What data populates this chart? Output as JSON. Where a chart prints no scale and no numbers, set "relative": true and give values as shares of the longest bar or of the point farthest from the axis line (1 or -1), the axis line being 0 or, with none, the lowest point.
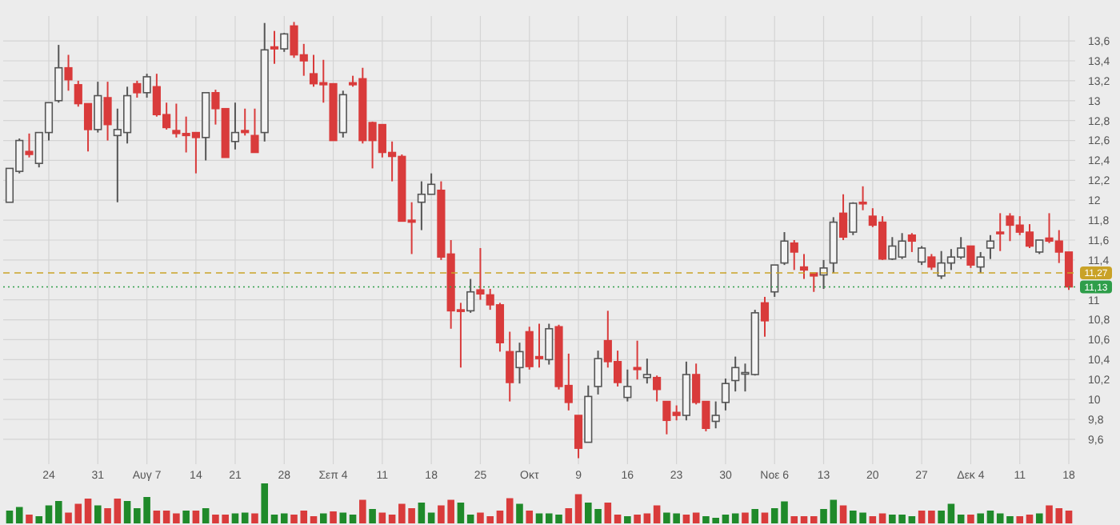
{
  "chart_data": [
    {
      "type": "candlestick",
      "categories": [
        null,
        null,
        null,
        null,
        "24",
        null,
        null,
        null,
        null,
        "31",
        null,
        null,
        null,
        null,
        "Αυγ 7",
        null,
        null,
        null,
        null,
        "14",
        null,
        null,
        null,
        "21",
        null,
        null,
        null,
        null,
        "28",
        null,
        null,
        null,
        null,
        "Σεπ 4",
        null,
        null,
        null,
        null,
        "11",
        null,
        null,
        null,
        null,
        "18",
        null,
        null,
        null,
        null,
        "25",
        null,
        null,
        null,
        null,
        "Οκτ",
        null,
        null,
        null,
        null,
        "9",
        null,
        null,
        null,
        null,
        "16",
        null,
        null,
        null,
        null,
        "23",
        null,
        null,
        null,
        null,
        "30",
        null,
        null,
        null,
        null,
        "Νοε 6",
        null,
        null,
        null,
        null,
        "13",
        null,
        null,
        null,
        null,
        "20",
        null,
        null,
        null,
        null,
        "27",
        null,
        null,
        null,
        null,
        "Δεκ 4",
        null,
        null,
        null,
        null,
        "11",
        null,
        null,
        null,
        null,
        "18"
      ],
      "ohlc": [
        [
          11.98,
          12.32,
          11.98,
          12.32
        ],
        [
          12.29,
          12.62,
          12.27,
          12.6
        ],
        [
          12.49,
          12.67,
          12.43,
          12.46
        ],
        [
          12.37,
          12.68,
          12.33,
          12.68
        ],
        [
          12.68,
          12.98,
          12.6,
          12.98
        ],
        [
          13.0,
          13.56,
          12.98,
          13.33
        ],
        [
          13.33,
          13.46,
          13.1,
          13.21
        ],
        [
          13.16,
          13.2,
          12.94,
          12.97
        ],
        [
          12.97,
          12.97,
          12.49,
          12.71
        ],
        [
          12.71,
          13.19,
          12.68,
          13.05
        ],
        [
          13.03,
          13.19,
          12.6,
          12.76
        ],
        [
          12.65,
          12.92,
          11.98,
          12.71
        ],
        [
          12.68,
          13.14,
          12.57,
          13.05
        ],
        [
          13.17,
          13.2,
          13.03,
          13.08
        ],
        [
          13.08,
          13.27,
          13.03,
          13.24
        ],
        [
          13.14,
          13.27,
          12.84,
          12.86
        ],
        [
          12.86,
          12.98,
          12.71,
          12.73
        ],
        [
          12.7,
          12.97,
          12.63,
          12.67
        ],
        [
          12.67,
          12.84,
          12.48,
          12.65
        ],
        [
          12.68,
          12.68,
          12.27,
          12.63
        ],
        [
          12.63,
          13.08,
          12.4,
          13.08
        ],
        [
          13.08,
          13.11,
          12.76,
          12.92
        ],
        [
          12.92,
          12.92,
          12.43,
          12.43
        ],
        [
          12.59,
          12.98,
          12.51,
          12.68
        ],
        [
          12.7,
          12.92,
          12.65,
          12.68
        ],
        [
          12.65,
          12.92,
          12.48,
          12.48
        ],
        [
          12.68,
          13.78,
          12.59,
          13.51
        ],
        [
          13.54,
          13.7,
          13.37,
          13.52
        ],
        [
          13.52,
          13.68,
          13.49,
          13.67
        ],
        [
          13.75,
          13.79,
          13.43,
          13.46
        ],
        [
          13.46,
          13.57,
          13.25,
          13.4
        ],
        [
          13.27,
          13.46,
          13.14,
          13.17
        ],
        [
          13.18,
          13.41,
          12.98,
          13.16
        ],
        [
          13.17,
          13.17,
          12.6,
          12.6
        ],
        [
          12.68,
          13.1,
          12.63,
          13.06
        ],
        [
          13.18,
          13.25,
          13.14,
          13.16
        ],
        [
          13.22,
          13.33,
          12.57,
          12.6
        ],
        [
          12.78,
          12.79,
          12.32,
          12.6
        ],
        [
          12.76,
          12.76,
          12.43,
          12.48
        ],
        [
          12.48,
          12.59,
          12.19,
          12.44
        ],
        [
          12.44,
          12.46,
          11.79,
          11.79
        ],
        [
          11.8,
          11.98,
          11.46,
          11.78
        ],
        [
          11.98,
          12.19,
          11.7,
          12.06
        ],
        [
          12.06,
          12.27,
          12.06,
          12.16
        ],
        [
          12.1,
          12.19,
          11.4,
          11.43
        ],
        [
          11.46,
          11.6,
          10.71,
          10.89
        ],
        [
          10.9,
          10.97,
          10.32,
          10.89
        ],
        [
          10.89,
          11.21,
          10.87,
          11.08
        ],
        [
          11.1,
          11.52,
          11.0,
          11.06
        ],
        [
          11.05,
          11.11,
          10.9,
          10.95
        ],
        [
          10.95,
          10.97,
          10.48,
          10.57
        ],
        [
          10.48,
          10.68,
          9.98,
          10.17
        ],
        [
          10.32,
          10.57,
          10.16,
          10.48
        ],
        [
          10.68,
          10.73,
          10.3,
          10.33
        ],
        [
          10.43,
          10.76,
          10.32,
          10.41
        ],
        [
          10.4,
          10.76,
          10.35,
          10.71
        ],
        [
          10.73,
          10.75,
          10.1,
          10.13
        ],
        [
          10.14,
          10.46,
          9.89,
          9.97
        ],
        [
          9.84,
          9.84,
          9.41,
          9.51
        ],
        [
          9.57,
          10.14,
          9.57,
          10.03
        ],
        [
          10.13,
          10.49,
          10.05,
          10.41
        ],
        [
          10.59,
          10.89,
          10.32,
          10.38
        ],
        [
          10.38,
          10.49,
          10.13,
          10.17
        ],
        [
          10.02,
          10.3,
          9.98,
          10.13
        ],
        [
          10.32,
          10.59,
          10.2,
          10.3
        ],
        [
          10.22,
          10.41,
          10.16,
          10.25
        ],
        [
          10.22,
          10.24,
          9.98,
          10.1
        ],
        [
          9.98,
          9.98,
          9.65,
          9.79
        ],
        [
          9.87,
          9.94,
          9.79,
          9.84
        ],
        [
          9.84,
          10.38,
          9.79,
          10.25
        ],
        [
          10.25,
          10.36,
          9.95,
          9.97
        ],
        [
          9.98,
          9.98,
          9.68,
          9.71
        ],
        [
          9.78,
          9.98,
          9.71,
          9.84
        ],
        [
          9.97,
          10.21,
          9.89,
          10.16
        ],
        [
          10.19,
          10.43,
          10.08,
          10.32
        ],
        [
          10.27,
          10.36,
          10.08,
          10.27
        ],
        [
          10.25,
          10.9,
          10.24,
          10.87
        ],
        [
          10.97,
          11.03,
          10.63,
          10.79
        ],
        [
          11.08,
          11.35,
          11.03,
          11.35
        ],
        [
          11.37,
          11.68,
          11.35,
          11.59
        ],
        [
          11.57,
          11.6,
          11.3,
          11.48
        ],
        [
          11.33,
          11.46,
          11.21,
          11.3
        ],
        [
          11.27,
          11.27,
          11.08,
          11.24
        ],
        [
          11.25,
          11.4,
          11.11,
          11.32
        ],
        [
          11.37,
          11.83,
          11.27,
          11.78
        ],
        [
          11.87,
          12.06,
          11.6,
          11.63
        ],
        [
          11.68,
          11.98,
          11.65,
          11.97
        ],
        [
          11.98,
          12.14,
          11.9,
          11.97
        ],
        [
          11.84,
          11.92,
          11.73,
          11.75
        ],
        [
          11.78,
          11.84,
          11.4,
          11.41
        ],
        [
          11.41,
          11.63,
          11.4,
          11.54
        ],
        [
          11.43,
          11.67,
          11.41,
          11.59
        ],
        [
          11.65,
          11.67,
          11.48,
          11.59
        ],
        [
          11.38,
          11.54,
          11.35,
          11.52
        ],
        [
          11.43,
          11.46,
          11.3,
          11.33
        ],
        [
          11.24,
          11.49,
          11.21,
          11.37
        ],
        [
          11.37,
          11.51,
          11.3,
          11.43
        ],
        [
          11.43,
          11.63,
          11.41,
          11.52
        ],
        [
          11.54,
          11.54,
          11.32,
          11.35
        ],
        [
          11.33,
          11.48,
          11.27,
          11.43
        ],
        [
          11.52,
          11.65,
          11.41,
          11.59
        ],
        [
          11.68,
          11.87,
          11.49,
          11.67
        ],
        [
          11.84,
          11.87,
          11.59,
          11.75
        ],
        [
          11.75,
          11.84,
          11.65,
          11.68
        ],
        [
          11.68,
          11.76,
          11.52,
          11.54
        ],
        [
          11.48,
          11.6,
          11.46,
          11.6
        ],
        [
          11.62,
          11.87,
          11.57,
          11.59
        ],
        [
          11.59,
          11.7,
          11.37,
          11.48
        ],
        [
          11.48,
          11.48,
          11.1,
          11.13
        ]
      ],
      "ylim": [
        9.35,
        13.85
      ],
      "yticks": [
        {
          "value": 9.6,
          "label": "9,6"
        },
        {
          "value": 9.8,
          "label": "9,8"
        },
        10,
        {
          "value": 10.2,
          "label": "10,2"
        },
        {
          "value": 10.4,
          "label": "10,4"
        },
        {
          "value": 10.6,
          "label": "10,6"
        },
        {
          "value": 10.8,
          "label": "10,8"
        },
        11,
        {
          "value": 11.4,
          "label": "11,4"
        },
        {
          "value": 11.6,
          "label": "11,6"
        },
        {
          "value": 11.8,
          "label": "11,8"
        },
        12,
        {
          "value": 12.2,
          "label": "12,2"
        },
        {
          "value": 12.4,
          "label": "12,4"
        },
        {
          "value": 12.6,
          "label": "12,6"
        },
        {
          "value": 12.8,
          "label": "12,8"
        },
        13,
        {
          "value": 13.2,
          "label": "13,2"
        },
        {
          "value": 13.4,
          "label": "13,4"
        },
        {
          "value": 13.6,
          "label": "13,6"
        }
      ],
      "ref_lines": [
        {
          "axis": "y",
          "value": 11.27,
          "label": "11,27",
          "color": "#c9a227",
          "line_style": "dashed"
        },
        {
          "axis": "y",
          "value": 11.13,
          "label": "11,13",
          "color": "#2e9e4a",
          "line_style": "dotted"
        }
      ],
      "grid": true
    },
    {
      "type": "bar",
      "relative": true,
      "categories": [
        null,
        null,
        null,
        null,
        null,
        null,
        null,
        null,
        null,
        null,
        null,
        null,
        null,
        null,
        null,
        null,
        null,
        null,
        null,
        null,
        null,
        null,
        null,
        null,
        null,
        null,
        null,
        null,
        null,
        null,
        null,
        null,
        null,
        null,
        null,
        null,
        null,
        null,
        null,
        null,
        null,
        null,
        null,
        null,
        null,
        null,
        null,
        null,
        null,
        null,
        null,
        null,
        null,
        null,
        null,
        null,
        null,
        null,
        null,
        null,
        null,
        null,
        null,
        null,
        null,
        null,
        null,
        null,
        null,
        null,
        null,
        null,
        null,
        null,
        null,
        null,
        null,
        null,
        null,
        null,
        null,
        null,
        null,
        null,
        null,
        null,
        null,
        null,
        null,
        null,
        null,
        null,
        null,
        null,
        null,
        null,
        null,
        null,
        null,
        null,
        null,
        null,
        null,
        null,
        null,
        null,
        null,
        null,
        null
      ],
      "values": [
        0.32,
        0.41,
        0.22,
        0.18,
        0.45,
        0.56,
        0.27,
        0.49,
        0.62,
        0.45,
        0.38,
        0.62,
        0.56,
        0.38,
        0.66,
        0.32,
        0.32,
        0.25,
        0.32,
        0.32,
        0.38,
        0.22,
        0.22,
        0.25,
        0.27,
        0.25,
        1,
        0.22,
        0.25,
        0.22,
        0.32,
        0.18,
        0.25,
        0.3,
        0.27,
        0.22,
        0.59,
        0.36,
        0.27,
        0.22,
        0.49,
        0.38,
        0.52,
        0.27,
        0.45,
        0.59,
        0.52,
        0.22,
        0.27,
        0.18,
        0.32,
        0.63,
        0.49,
        0.32,
        0.25,
        0.25,
        0.22,
        0.38,
        0.73,
        0.52,
        0.36,
        0.52,
        0.22,
        0.18,
        0.22,
        0.25,
        0.45,
        0.27,
        0.25,
        0.22,
        0.27,
        0.18,
        0.14,
        0.22,
        0.25,
        0.27,
        0.36,
        0.27,
        0.38,
        0.55,
        0.18,
        0.18,
        0.18,
        0.36,
        0.59,
        0.45,
        0.32,
        0.27,
        0.18,
        0.25,
        0.22,
        0.22,
        0.18,
        0.32,
        0.32,
        0.32,
        0.49,
        0.22,
        0.22,
        0.25,
        0.32,
        0.25,
        0.18,
        0.18,
        0.22,
        0.25,
        0.45,
        0.38,
        0.32
      ],
      "colors": [
        "#1f8a2a",
        "#1f8a2a",
        "#d93b3b",
        "#1f8a2a",
        "#1f8a2a",
        "#1f8a2a",
        "#d93b3b",
        "#d93b3b",
        "#d93b3b",
        "#1f8a2a",
        "#d93b3b",
        "#d93b3b",
        "#1f8a2a",
        "#1f8a2a",
        "#1f8a2a",
        "#d93b3b",
        "#d93b3b",
        "#d93b3b",
        "#1f8a2a",
        "#d93b3b",
        "#1f8a2a",
        "#d93b3b",
        "#d93b3b",
        "#1f8a2a",
        "#1f8a2a",
        "#d93b3b",
        "#1f8a2a",
        "#1f8a2a",
        "#1f8a2a",
        "#d93b3b",
        "#d93b3b",
        "#d93b3b",
        "#1f8a2a",
        "#d93b3b",
        "#1f8a2a",
        "#1f8a2a",
        "#d93b3b",
        "#1f8a2a",
        "#d93b3b",
        "#d93b3b",
        "#d93b3b",
        "#d93b3b",
        "#1f8a2a",
        "#1f8a2a",
        "#d93b3b",
        "#d93b3b",
        "#1f8a2a",
        "#1f8a2a",
        "#d93b3b",
        "#d93b3b",
        "#d93b3b",
        "#d93b3b",
        "#1f8a2a",
        "#d93b3b",
        "#1f8a2a",
        "#1f8a2a",
        "#1f8a2a",
        "#d93b3b",
        "#d93b3b",
        "#1f8a2a",
        "#1f8a2a",
        "#d93b3b",
        "#d93b3b",
        "#1f8a2a",
        "#d93b3b",
        "#d93b3b",
        "#d93b3b",
        "#1f8a2a",
        "#1f8a2a",
        "#d93b3b",
        "#d93b3b",
        "#1f8a2a",
        "#1f8a2a",
        "#1f8a2a",
        "#1f8a2a",
        "#d93b3b",
        "#1f8a2a",
        "#d93b3b",
        "#1f8a2a",
        "#1f8a2a",
        "#d93b3b",
        "#d93b3b",
        "#d93b3b",
        "#1f8a2a",
        "#1f8a2a",
        "#d93b3b",
        "#1f8a2a",
        "#1f8a2a",
        "#d93b3b",
        "#d93b3b",
        "#1f8a2a",
        "#1f8a2a",
        "#1f8a2a",
        "#d93b3b",
        "#d93b3b",
        "#1f8a2a",
        "#1f8a2a",
        "#1f8a2a",
        "#d93b3b",
        "#1f8a2a",
        "#1f8a2a",
        "#1f8a2a",
        "#1f8a2a",
        "#d93b3b",
        "#d93b3b",
        "#1f8a2a",
        "#d93b3b",
        "#d93b3b",
        "#d93b3b"
      ]
    }
  ]
}
